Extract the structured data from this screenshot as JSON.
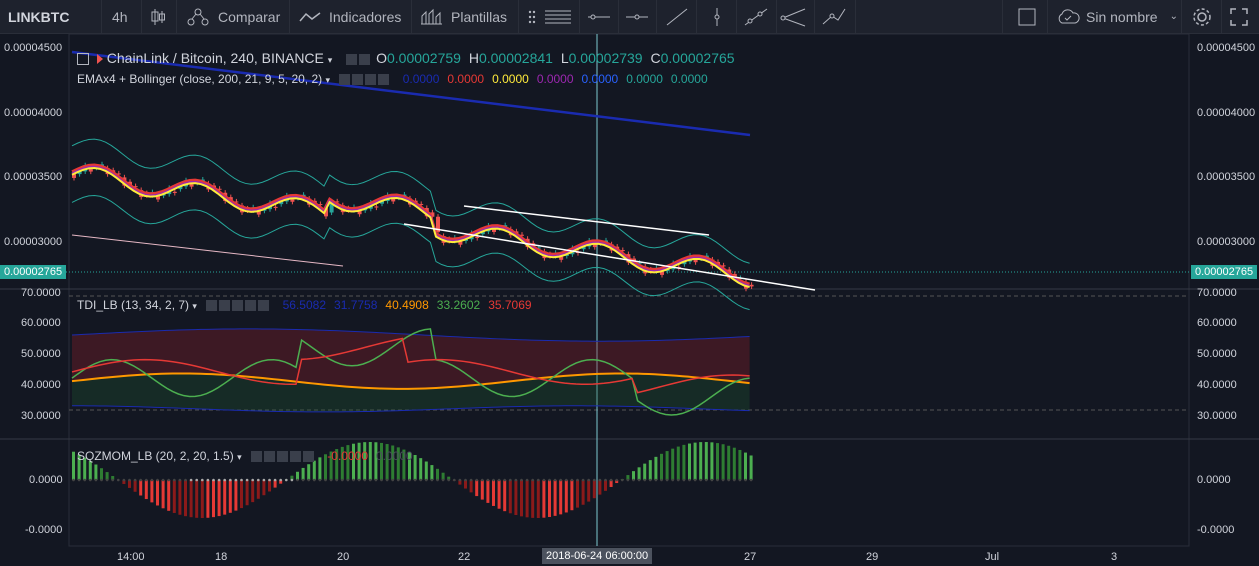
{
  "toolbar": {
    "symbol": "LINKBTC",
    "interval": "4h",
    "compare": "Comparar",
    "indicators": "Indicadores",
    "templates": "Plantillas",
    "layout_name": "Sin nombre"
  },
  "main_legend": {
    "title": "ChainLink / Bitcoin, 240, BINANCE",
    "o_label": "O",
    "o": "0.00002759",
    "h_label": "H",
    "h": "0.00002841",
    "l_label": "L",
    "l": "0.00002739",
    "c_label": "C",
    "c": "0.00002765"
  },
  "ema_legend": {
    "title": "EMAx4 + Bollinger (close, 200, 21, 9, 5, 20, 2)",
    "values": [
      "0.0000",
      "0.0000",
      "0.0000",
      "0.0000",
      "0.0000",
      "0.0000",
      "0.0000"
    ],
    "colors": [
      "#1a2bb0",
      "#e53935",
      "#ffeb3b",
      "#9c27b0",
      "#2962ff",
      "#26a69a",
      "#26a69a"
    ]
  },
  "tdi_legend": {
    "title": "TDI_LB (13, 34, 2, 7)",
    "values": [
      "56.5082",
      "31.7758",
      "40.4908",
      "33.2602",
      "35.7069"
    ],
    "colors": [
      "#1a2bb0",
      "#1a2bb0",
      "#ff9800",
      "#4caf50",
      "#e53935"
    ]
  },
  "sqz_legend": {
    "title": "SQZMOM_LB (20, 2, 20, 1.5)",
    "values": [
      "-0.0000",
      "0.0000"
    ],
    "colors": [
      "#e53935",
      "#4a4f5b"
    ]
  },
  "price_axis": [
    "0.00004500",
    "0.00004000",
    "0.00003500",
    "0.00003000"
  ],
  "price_current": "0.00002765",
  "tdi_axis": [
    "70.0000",
    "60.0000",
    "50.0000",
    "40.0000",
    "30.0000"
  ],
  "sqz_axis": [
    "0.0000",
    "-0.0000"
  ],
  "time_axis": [
    "14:00",
    "18",
    "20",
    "22",
    "27",
    "29",
    "Jul",
    "3"
  ],
  "crosshair_time": "2018-06-24 06:00:00",
  "colors": {
    "up": "#26a69a",
    "down": "#ef5350",
    "bg": "#131722",
    "toolbar": "#1e222d"
  }
}
